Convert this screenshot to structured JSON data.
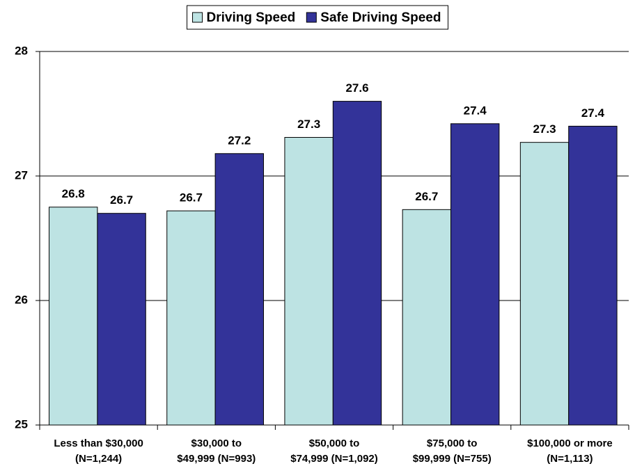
{
  "chart_data": {
    "type": "bar",
    "legend": "top",
    "grid": true,
    "categories": [
      [
        "Less than $30,000",
        "(N=1,244)"
      ],
      [
        "$30,000 to",
        "$49,999 (N=993)"
      ],
      [
        "$50,000 to",
        "$74,999 (N=1,092)"
      ],
      [
        "$75,000 to",
        "$99,999 (N=755)"
      ],
      [
        "$100,000 or more",
        "(N=1,113)"
      ]
    ],
    "series": [
      {
        "name": "Driving Speed",
        "color": "#bde3e3",
        "values": [
          26.75,
          26.72,
          27.31,
          26.73,
          27.27
        ],
        "value_labels": [
          "26.8",
          "26.7",
          "27.3",
          "26.7",
          "27.3"
        ]
      },
      {
        "name": "Safe Driving Speed",
        "color": "#333399",
        "values": [
          26.7,
          27.18,
          27.6,
          27.42,
          27.4
        ],
        "value_labels": [
          "26.7",
          "27.2",
          "27.6",
          "27.4",
          "27.4"
        ]
      }
    ],
    "ylim": [
      25,
      28
    ],
    "yticks": [
      25,
      26,
      27,
      28
    ]
  }
}
